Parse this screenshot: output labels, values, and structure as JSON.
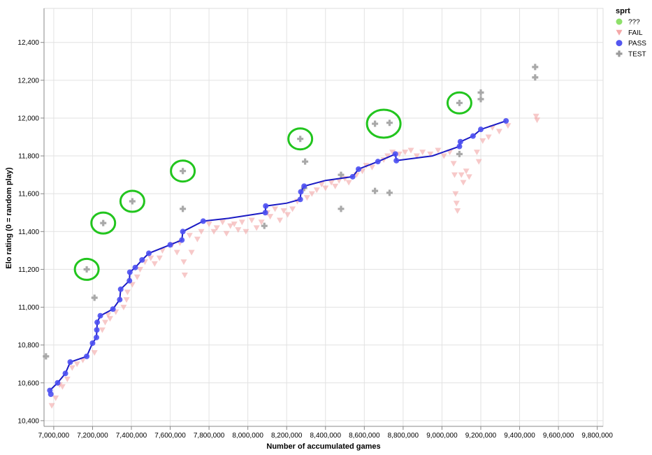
{
  "chart_data": {
    "type": "scatter",
    "title": "",
    "xlabel": "Number of accumulated games",
    "ylabel": "Elo rating (0 = random play)",
    "xlim": [
      6950000,
      9830000
    ],
    "ylim": [
      10370000,
      12580000
    ],
    "x_ticks": [
      7000000,
      7200000,
      7400000,
      7600000,
      7800000,
      8000000,
      8200000,
      8400000,
      8600000,
      8800000,
      9000000,
      9200000,
      9400000,
      9600000,
      9800000
    ],
    "x_tick_labels": [
      "7,000,000",
      "7,200,000",
      "7,400,000",
      "7,600,000",
      "7,800,000",
      "8,000,000",
      "8,200,000",
      "8,400,000",
      "8,600,000",
      "8,800,000",
      "9,000,000",
      "9,200,000",
      "9,400,000",
      "9,600,000",
      "9,800,000"
    ],
    "y_ticks": [
      10400,
      10600,
      10800,
      11000,
      11200,
      11400,
      11600,
      11800,
      12000,
      12200,
      12400
    ],
    "y_tick_labels": [
      "10,400",
      "10,600",
      "10,800",
      "11,000",
      "11,200",
      "11,400",
      "11,600",
      "11,800",
      "12,000",
      "12,200",
      "12,400"
    ],
    "grid": true,
    "legend": {
      "title": "sprt",
      "position": "right",
      "entries": [
        {
          "label": "???",
          "shape": "circle",
          "color": "#8ee06a"
        },
        {
          "label": "FAIL",
          "shape": "triangle-down",
          "color": "#f4a8a8"
        },
        {
          "label": "PASS",
          "shape": "circle",
          "color": "#5457f0"
        },
        {
          "label": "TEST",
          "shape": "cross",
          "color": "#9a9a9a"
        }
      ]
    },
    "series": [
      {
        "name": "PASS",
        "color": "#4b4ff2",
        "points": [
          [
            6980000,
            10560
          ],
          [
            6985000,
            10540
          ],
          [
            7020000,
            10600
          ],
          [
            7060000,
            10650
          ],
          [
            7085000,
            10710
          ],
          [
            7170000,
            10740
          ],
          [
            7200000,
            10810
          ],
          [
            7220000,
            10840
          ],
          [
            7222000,
            10880
          ],
          [
            7224000,
            10920
          ],
          [
            7240000,
            10955
          ],
          [
            7305000,
            10990
          ],
          [
            7340000,
            11040
          ],
          [
            7345000,
            11095
          ],
          [
            7390000,
            11140
          ],
          [
            7392000,
            11185
          ],
          [
            7420000,
            11210
          ],
          [
            7455000,
            11250
          ],
          [
            7490000,
            11285
          ],
          [
            7600000,
            11330
          ],
          [
            7660000,
            11355
          ],
          [
            7665000,
            11400
          ],
          [
            7770000,
            11455
          ],
          [
            8090000,
            11500
          ],
          [
            8092000,
            11535
          ],
          [
            8270000,
            11570
          ],
          [
            8273000,
            11610
          ],
          [
            8290000,
            11640
          ],
          [
            8540000,
            11690
          ],
          [
            8570000,
            11730
          ],
          [
            8670000,
            11770
          ],
          [
            8760000,
            11810
          ],
          [
            8765000,
            11775
          ],
          [
            9090000,
            11850
          ],
          [
            9095000,
            11875
          ],
          [
            9160000,
            11905
          ],
          [
            9200000,
            11940
          ],
          [
            9330000,
            11985
          ]
        ]
      },
      {
        "name": "FAIL",
        "color": "#f2a5a5",
        "points": [
          [
            6990000,
            10480
          ],
          [
            7010000,
            10520
          ],
          [
            7030000,
            10590
          ],
          [
            7045000,
            10580
          ],
          [
            7070000,
            10620
          ],
          [
            7095000,
            10680
          ],
          [
            7120000,
            10700
          ],
          [
            7150000,
            10720
          ],
          [
            7210000,
            10760
          ],
          [
            7250000,
            10880
          ],
          [
            7265000,
            10920
          ],
          [
            7280000,
            10960
          ],
          [
            7290000,
            10940
          ],
          [
            7320000,
            10975
          ],
          [
            7360000,
            11000
          ],
          [
            7375000,
            11040
          ],
          [
            7380000,
            11080
          ],
          [
            7405000,
            11120
          ],
          [
            7430000,
            11160
          ],
          [
            7445000,
            11200
          ],
          [
            7470000,
            11240
          ],
          [
            7500000,
            11260
          ],
          [
            7520000,
            11230
          ],
          [
            7545000,
            11260
          ],
          [
            7560000,
            11300
          ],
          [
            7610000,
            11330
          ],
          [
            7635000,
            11290
          ],
          [
            7650000,
            11340
          ],
          [
            7670000,
            11240
          ],
          [
            7675000,
            11170
          ],
          [
            7700000,
            11380
          ],
          [
            7710000,
            11290
          ],
          [
            7740000,
            11360
          ],
          [
            7760000,
            11400
          ],
          [
            7800000,
            11440
          ],
          [
            7825000,
            11400
          ],
          [
            7840000,
            11420
          ],
          [
            7870000,
            11450
          ],
          [
            7890000,
            11390
          ],
          [
            7910000,
            11430
          ],
          [
            7930000,
            11440
          ],
          [
            7950000,
            11410
          ],
          [
            7970000,
            11450
          ],
          [
            7990000,
            11400
          ],
          [
            8020000,
            11460
          ],
          [
            8045000,
            11420
          ],
          [
            8070000,
            11450
          ],
          [
            8100000,
            11500
          ],
          [
            8115000,
            11480
          ],
          [
            8140000,
            11520
          ],
          [
            8165000,
            11460
          ],
          [
            8185000,
            11510
          ],
          [
            8205000,
            11490
          ],
          [
            8230000,
            11520
          ],
          [
            8255000,
            11560
          ],
          [
            8305000,
            11580
          ],
          [
            8330000,
            11600
          ],
          [
            8355000,
            11620
          ],
          [
            8380000,
            11650
          ],
          [
            8400000,
            11630
          ],
          [
            8430000,
            11660
          ],
          [
            8450000,
            11640
          ],
          [
            8470000,
            11670
          ],
          [
            8500000,
            11680
          ],
          [
            8520000,
            11660
          ],
          [
            8560000,
            11700
          ],
          [
            8590000,
            11720
          ],
          [
            8610000,
            11750
          ],
          [
            8640000,
            11740
          ],
          [
            8700000,
            11780
          ],
          [
            8720000,
            11800
          ],
          [
            8745000,
            11820
          ],
          [
            8780000,
            11810
          ],
          [
            8810000,
            11820
          ],
          [
            8840000,
            11830
          ],
          [
            8870000,
            11800
          ],
          [
            8900000,
            11820
          ],
          [
            8940000,
            11810
          ],
          [
            8980000,
            11830
          ],
          [
            9010000,
            11800
          ],
          [
            9040000,
            11820
          ],
          [
            9060000,
            11760
          ],
          [
            9065000,
            11700
          ],
          [
            9070000,
            11600
          ],
          [
            9075000,
            11550
          ],
          [
            9080000,
            11510
          ],
          [
            9100000,
            11700
          ],
          [
            9110000,
            11660
          ],
          [
            9125000,
            11720
          ],
          [
            9140000,
            11690
          ],
          [
            9180000,
            11820
          ],
          [
            9190000,
            11770
          ],
          [
            9210000,
            11880
          ],
          [
            9240000,
            11900
          ],
          [
            9260000,
            11950
          ],
          [
            9295000,
            11930
          ],
          [
            9340000,
            11960
          ],
          [
            9485000,
            12010
          ],
          [
            9490000,
            11990
          ]
        ]
      },
      {
        "name": "TEST",
        "color": "#9a9a9a",
        "points": [
          [
            6960000,
            10740
          ],
          [
            7170000,
            11200
          ],
          [
            7210000,
            11050
          ],
          [
            7255000,
            11445
          ],
          [
            7405000,
            11560
          ],
          [
            7665000,
            11720
          ],
          [
            7665000,
            11520
          ],
          [
            8085000,
            11430
          ],
          [
            8270000,
            11890
          ],
          [
            8295000,
            11770
          ],
          [
            8290000,
            11630
          ],
          [
            8480000,
            11700
          ],
          [
            8480000,
            11520
          ],
          [
            8655000,
            11970
          ],
          [
            8655000,
            11615
          ],
          [
            8730000,
            11975
          ],
          [
            8730000,
            11605
          ],
          [
            9090000,
            12080
          ],
          [
            9090000,
            11810
          ],
          [
            9200000,
            12135
          ],
          [
            9200000,
            12100
          ],
          [
            9480000,
            12270
          ],
          [
            9480000,
            12215
          ]
        ]
      }
    ],
    "trend_line": {
      "color": "#1b1bc4",
      "points": [
        [
          6980000,
          10560
        ],
        [
          7020000,
          10600
        ],
        [
          7060000,
          10650
        ],
        [
          7085000,
          10710
        ],
        [
          7170000,
          10740
        ],
        [
          7200000,
          10810
        ],
        [
          7220000,
          10840
        ],
        [
          7222000,
          10880
        ],
        [
          7224000,
          10920
        ],
        [
          7240000,
          10955
        ],
        [
          7305000,
          10990
        ],
        [
          7340000,
          11040
        ],
        [
          7345000,
          11095
        ],
        [
          7390000,
          11140
        ],
        [
          7392000,
          11185
        ],
        [
          7420000,
          11210
        ],
        [
          7455000,
          11250
        ],
        [
          7490000,
          11285
        ],
        [
          7600000,
          11330
        ],
        [
          7660000,
          11355
        ],
        [
          7665000,
          11400
        ],
        [
          7770000,
          11455
        ],
        [
          7900000,
          11470
        ],
        [
          8090000,
          11500
        ],
        [
          8092000,
          11535
        ],
        [
          8200000,
          11550
        ],
        [
          8270000,
          11570
        ],
        [
          8273000,
          11610
        ],
        [
          8290000,
          11640
        ],
        [
          8400000,
          11670
        ],
        [
          8540000,
          11690
        ],
        [
          8570000,
          11730
        ],
        [
          8670000,
          11770
        ],
        [
          8760000,
          11810
        ],
        [
          8765000,
          11775
        ],
        [
          8950000,
          11800
        ],
        [
          9090000,
          11850
        ],
        [
          9095000,
          11875
        ],
        [
          9160000,
          11905
        ],
        [
          9200000,
          11940
        ],
        [
          9330000,
          11985
        ]
      ]
    }
  }
}
